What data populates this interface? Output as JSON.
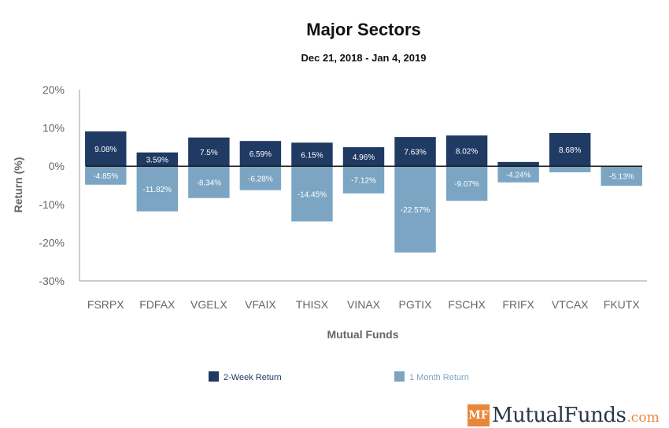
{
  "chart_data": {
    "type": "bar",
    "title": "Major Sectors",
    "subtitle": "Dec 21, 2018 - Jan 4, 2019",
    "xlabel": "Mutual Funds",
    "ylabel": "Return (%)",
    "ylim": [
      -30,
      20
    ],
    "yticks": [
      "20%",
      "10%",
      "0%",
      "-10%",
      "-20%",
      "-30%"
    ],
    "grid": false,
    "legend": "bottom",
    "categories": [
      "FSRPX",
      "FDFAX",
      "VGELX",
      "VFAIX",
      "THISX",
      "VINAX",
      "PGTIX",
      "FSCHX",
      "FRIFX",
      "VTCAX",
      "FKUTX"
    ],
    "series": [
      {
        "name": "2-Week Return",
        "color": "#1f3a63",
        "values": [
          9.08,
          3.59,
          7.5,
          6.59,
          6.15,
          4.96,
          7.63,
          8.02,
          1.1,
          8.68,
          -1.5
        ],
        "labels": [
          "9.08%",
          "3.59%",
          "7.5%",
          "6.59%",
          "6.15%",
          "4.96%",
          "7.63%",
          "8.02%",
          "",
          "8.68%",
          ""
        ]
      },
      {
        "name": "1 Month Return",
        "color": "#7ba5c3",
        "values": [
          -4.85,
          -11.82,
          -8.34,
          -6.28,
          -14.45,
          -7.12,
          -22.57,
          -9.07,
          -4.24,
          -1.6,
          -5.13
        ],
        "labels": [
          "-4.85%",
          "-11.82%",
          "-8.34%",
          "-6.28%",
          "-14.45%",
          "-7.12%",
          "-22.57%",
          "-9.07%",
          "-4.24%",
          "",
          "-5.13%"
        ]
      }
    ]
  },
  "logo": {
    "mark": "MF",
    "name": "MutualFunds",
    "tld": ".com"
  }
}
